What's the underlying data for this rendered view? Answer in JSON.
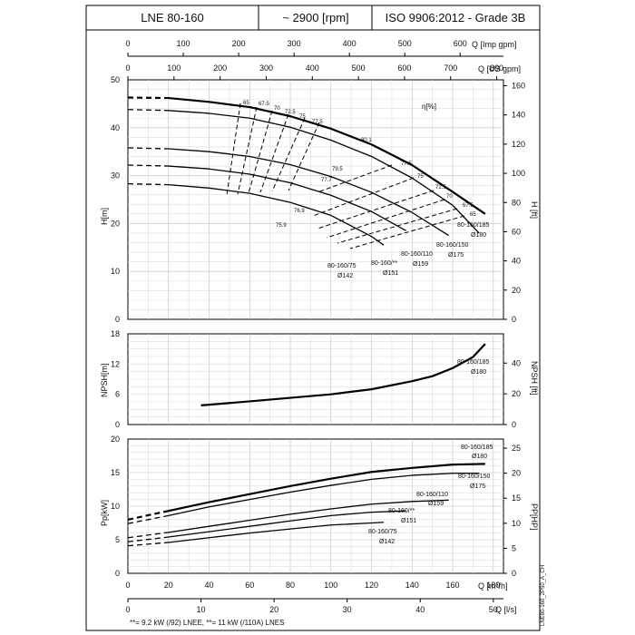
{
  "header": {
    "model": "LNE 80-160",
    "speed": "~ 2900 [rpm]",
    "standard": "ISO 9906:2012 - Grade 3B"
  },
  "axes": {
    "q_imp_label": "Q [Imp gpm]",
    "q_imp_ticks": [
      0,
      100,
      200,
      300,
      400,
      500,
      600
    ],
    "q_us_label": "Q [US gpm]",
    "q_us_ticks": [
      0,
      100,
      200,
      300,
      400,
      500,
      600,
      700,
      800
    ],
    "q_m3h_label": "Q [m³/h]",
    "q_m3h_ticks": [
      0,
      20,
      40,
      60,
      80,
      100,
      120,
      140,
      160,
      180
    ],
    "q_ls_label": "Q [l/s]",
    "q_ls_ticks": [
      0,
      10,
      20,
      30,
      40,
      50
    ],
    "h_m_label": "H[m]",
    "h_m_ticks": [
      0,
      10,
      20,
      30,
      40,
      50
    ],
    "h_ft_label": "H [ft]",
    "h_ft_ticks": [
      0,
      20,
      40,
      60,
      80,
      100,
      120,
      140,
      160
    ],
    "npsh_m_label": "NPSH[m]",
    "npsh_m_ticks": [
      0,
      6,
      12,
      18
    ],
    "npsh_ft_label": "NPSH [ft]",
    "npsh_ft_ticks": [
      0,
      20,
      40
    ],
    "p_kw_label": "Pp[kW]",
    "p_kw_ticks": [
      0,
      5,
      10,
      15,
      20
    ],
    "p_hp_label": "PP[HP]",
    "p_hp_ticks": [
      0,
      5,
      10,
      15,
      20,
      25
    ]
  },
  "eta_label": "η[%]",
  "eta_values": [
    "65",
    "67.5",
    "70",
    "72.5",
    "75",
    "77.5",
    "80.1",
    "79.5",
    "77.7",
    "76.9",
    "75.9"
  ],
  "eta_right": [
    "77.5",
    "75",
    "72.5",
    "70",
    "67.5",
    "65"
  ],
  "impellers": [
    {
      "name": "80-160/185",
      "dia": "Ø180"
    },
    {
      "name": "80-160/150",
      "dia": "Ø175"
    },
    {
      "name": "80-160/110",
      "dia": "Ø159"
    },
    {
      "name": "80-160/**",
      "dia": "Ø151"
    },
    {
      "name": "80-160/75",
      "dia": "Ø142"
    }
  ],
  "side_code": "LNE80-160_2P50_A_CH",
  "footnote": "**= 9.2 kW (/92) LNEE, **= 11 kW (/110A) LNES",
  "chart_data": [
    {
      "type": "line",
      "ylabel": "H[m]",
      "xlabel": "Q [m³/h]",
      "xlim": [
        0,
        185
      ],
      "ylim": [
        0,
        50
      ],
      "series": [
        {
          "name": "80-160/185",
          "x": [
            0,
            20,
            40,
            60,
            80,
            100,
            120,
            140,
            160,
            176
          ],
          "y": [
            46.3,
            46.2,
            45.4,
            44.3,
            42.4,
            39.8,
            36.5,
            32.2,
            26.6,
            22
          ]
        },
        {
          "name": "80-160/150",
          "x": [
            0,
            20,
            40,
            60,
            80,
            100,
            120,
            140,
            160,
            173
          ],
          "y": [
            43.8,
            43.6,
            43,
            42,
            40.1,
            37.4,
            34,
            29.5,
            23.8,
            18
          ]
        },
        {
          "name": "80-160/110",
          "x": [
            0,
            20,
            40,
            60,
            80,
            100,
            120,
            140,
            158
          ],
          "y": [
            35.8,
            35.6,
            35,
            34,
            32.3,
            29.8,
            26.5,
            22.3,
            17.5
          ]
        },
        {
          "name": "80-160/**",
          "x": [
            0,
            20,
            40,
            60,
            80,
            100,
            120,
            137
          ],
          "y": [
            32.2,
            32,
            31.4,
            30.3,
            28.5,
            25.9,
            22.5,
            18.5
          ]
        },
        {
          "name": "80-160/75",
          "x": [
            0,
            20,
            40,
            60,
            80,
            100,
            120,
            126
          ],
          "y": [
            28.3,
            28.1,
            27.4,
            26.3,
            24.4,
            21.7,
            17.3,
            15.5
          ]
        }
      ]
    },
    {
      "type": "line",
      "ylabel": "NPSH[m]",
      "xlabel": "Q [m³/h]",
      "xlim": [
        0,
        185
      ],
      "ylim": [
        0,
        18
      ],
      "series": [
        {
          "name": "80-160/185",
          "x": [
            36,
            60,
            80,
            100,
            120,
            140,
            150,
            160,
            170,
            176
          ],
          "y": [
            3.8,
            4.6,
            5.3,
            6,
            7,
            8.6,
            9.6,
            11.2,
            13.4,
            16
          ]
        }
      ]
    },
    {
      "type": "line",
      "ylabel": "Pp[kW]",
      "xlabel": "Q [m³/h]",
      "xlim": [
        0,
        185
      ],
      "ylim": [
        0,
        20
      ],
      "series": [
        {
          "name": "80-160/185",
          "x": [
            0,
            20,
            40,
            60,
            80,
            100,
            120,
            140,
            160,
            176
          ],
          "y": [
            8,
            9.3,
            10.6,
            11.8,
            13,
            14.1,
            15.1,
            15.7,
            16.2,
            16.3
          ]
        },
        {
          "name": "80-160/150",
          "x": [
            0,
            20,
            40,
            60,
            80,
            100,
            120,
            140,
            160,
            173
          ],
          "y": [
            7.4,
            8.6,
            9.9,
            11,
            12.1,
            13.1,
            14,
            14.6,
            14.9,
            14.9
          ]
        },
        {
          "name": "80-160/110",
          "x": [
            0,
            20,
            40,
            60,
            80,
            100,
            120,
            140,
            158
          ],
          "y": [
            5.3,
            6.1,
            7,
            7.9,
            8.8,
            9.6,
            10.3,
            10.7,
            10.9
          ]
        },
        {
          "name": "80-160/**",
          "x": [
            0,
            20,
            40,
            60,
            80,
            100,
            120,
            137
          ],
          "y": [
            4.7,
            5.4,
            6.2,
            7,
            7.8,
            8.6,
            9.1,
            9.3
          ]
        },
        {
          "name": "80-160/75",
          "x": [
            0,
            20,
            40,
            60,
            80,
            100,
            120,
            126
          ],
          "y": [
            4.1,
            4.6,
            5.3,
            6,
            6.6,
            7.2,
            7.5,
            7.6
          ]
        }
      ]
    }
  ]
}
